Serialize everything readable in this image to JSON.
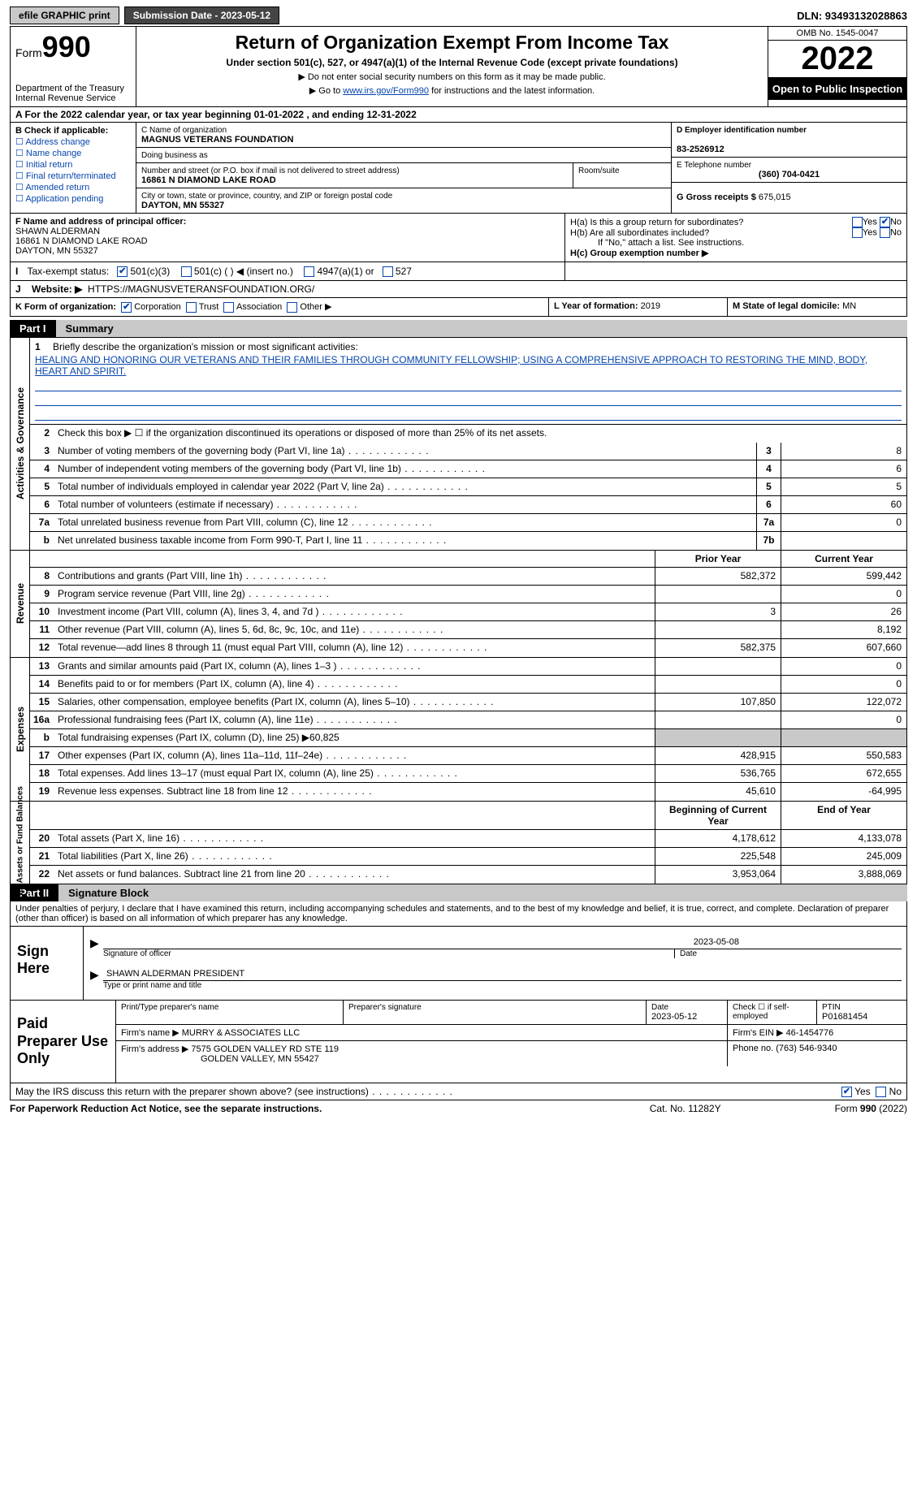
{
  "topbar": {
    "efile": "efile GRAPHIC print",
    "submission": "Submission Date - 2023-05-12",
    "dln": "DLN: 93493132028863"
  },
  "header": {
    "form_prefix": "Form",
    "form_no": "990",
    "dept": "Department of the Treasury",
    "irs": "Internal Revenue Service",
    "title": "Return of Organization Exempt From Income Tax",
    "subtitle": "Under section 501(c), 527, or 4947(a)(1) of the Internal Revenue Code (except private foundations)",
    "note1": "▶ Do not enter social security numbers on this form as it may be made public.",
    "note2_pre": "▶ Go to ",
    "note2_link": "www.irs.gov/Form990",
    "note2_post": " for instructions and the latest information.",
    "omb": "OMB No. 1545-0047",
    "year": "2022",
    "inspect": "Open to Public Inspection"
  },
  "row_a": "A   For the 2022 calendar year, or tax year beginning 01-01-2022     , and ending 12-31-2022",
  "b": {
    "label": "B Check if applicable:",
    "items": [
      "Address change",
      "Name change",
      "Initial return",
      "Final return/terminated",
      "Amended return",
      "Application pending"
    ]
  },
  "c": {
    "name_lbl": "C Name of organization",
    "name": "MAGNUS VETERANS FOUNDATION",
    "dba_lbl": "Doing business as",
    "dba": "",
    "street_lbl": "Number and street (or P.O. box if mail is not delivered to street address)",
    "street": "16861 N DIAMOND LAKE ROAD",
    "room_lbl": "Room/suite",
    "room": "",
    "city_lbl": "City or town, state or province, country, and ZIP or foreign postal code",
    "city": "DAYTON, MN  55327"
  },
  "d": {
    "lbl": "D Employer identification number",
    "val": "83-2526912"
  },
  "e": {
    "lbl": "E Telephone number",
    "val": "(360) 704-0421"
  },
  "g": {
    "lbl": "G Gross receipts $",
    "val": "675,015"
  },
  "f": {
    "lbl": "F  Name and address of principal officer:",
    "name": "SHAWN ALDERMAN",
    "addr1": "16861 N DIAMOND LAKE ROAD",
    "addr2": "DAYTON, MN  55327"
  },
  "h": {
    "a": "H(a)  Is this a group return for subordinates?",
    "b": "H(b)  Are all subordinates included?",
    "b_note": "If \"No,\" attach a list. See instructions.",
    "c": "H(c)  Group exemption number ▶"
  },
  "i": {
    "lbl": "Tax-exempt status:",
    "opts": [
      "501(c)(3)",
      "501(c) (    ) ◀ (insert no.)",
      "4947(a)(1) or",
      "527"
    ]
  },
  "j": {
    "lbl": "Website: ▶",
    "val": "HTTPS://MAGNUSVETERANSFOUNDATION.ORG/"
  },
  "k": {
    "lbl": "K Form of organization:",
    "opts": [
      "Corporation",
      "Trust",
      "Association",
      "Other ▶"
    ]
  },
  "l": {
    "lbl": "L Year of formation:",
    "val": "2019"
  },
  "m": {
    "lbl": "M State of legal domicile:",
    "val": "MN"
  },
  "part1": {
    "pt": "Part I",
    "name": "Summary"
  },
  "summary": {
    "q1": "Briefly describe the organization's mission or most significant activities:",
    "mission": "HEALING AND HONORING OUR VETERANS AND THEIR FAMILIES THROUGH COMMUNITY FELLOWSHIP; USING A COMPREHENSIVE APPROACH TO RESTORING THE MIND, BODY, HEART AND SPIRIT.",
    "q2": "Check this box ▶ ☐  if the organization discontinued its operations or disposed of more than 25% of its net assets.",
    "lines_simple": [
      {
        "n": "3",
        "t": "Number of voting members of the governing body (Part VI, line 1a)",
        "box": "3",
        "v": "8"
      },
      {
        "n": "4",
        "t": "Number of independent voting members of the governing body (Part VI, line 1b)",
        "box": "4",
        "v": "6"
      },
      {
        "n": "5",
        "t": "Total number of individuals employed in calendar year 2022 (Part V, line 2a)",
        "box": "5",
        "v": "5"
      },
      {
        "n": "6",
        "t": "Total number of volunteers (estimate if necessary)",
        "box": "6",
        "v": "60"
      },
      {
        "n": "7a",
        "t": "Total unrelated business revenue from Part VIII, column (C), line 12",
        "box": "7a",
        "v": "0"
      },
      {
        "n": "b",
        "t": "Net unrelated business taxable income from Form 990-T, Part I, line 11",
        "box": "7b",
        "v": ""
      }
    ],
    "col_hdr": {
      "prior": "Prior Year",
      "current": "Current Year"
    },
    "revenue": [
      {
        "n": "8",
        "t": "Contributions and grants (Part VIII, line 1h)",
        "p": "582,372",
        "c": "599,442"
      },
      {
        "n": "9",
        "t": "Program service revenue (Part VIII, line 2g)",
        "p": "",
        "c": "0"
      },
      {
        "n": "10",
        "t": "Investment income (Part VIII, column (A), lines 3, 4, and 7d )",
        "p": "3",
        "c": "26"
      },
      {
        "n": "11",
        "t": "Other revenue (Part VIII, column (A), lines 5, 6d, 8c, 9c, 10c, and 11e)",
        "p": "",
        "c": "8,192"
      },
      {
        "n": "12",
        "t": "Total revenue—add lines 8 through 11 (must equal Part VIII, column (A), line 12)",
        "p": "582,375",
        "c": "607,660"
      }
    ],
    "expenses": [
      {
        "n": "13",
        "t": "Grants and similar amounts paid (Part IX, column (A), lines 1–3 )",
        "p": "",
        "c": "0"
      },
      {
        "n": "14",
        "t": "Benefits paid to or for members (Part IX, column (A), line 4)",
        "p": "",
        "c": "0"
      },
      {
        "n": "15",
        "t": "Salaries, other compensation, employee benefits (Part IX, column (A), lines 5–10)",
        "p": "107,850",
        "c": "122,072"
      },
      {
        "n": "16a",
        "t": "Professional fundraising fees (Part IX, column (A), line 11e)",
        "p": "",
        "c": "0"
      },
      {
        "n": "b",
        "t": "Total fundraising expenses (Part IX, column (D), line 25) ▶60,825",
        "shade": true
      },
      {
        "n": "17",
        "t": "Other expenses (Part IX, column (A), lines 11a–11d, 11f–24e)",
        "p": "428,915",
        "c": "550,583"
      },
      {
        "n": "18",
        "t": "Total expenses. Add lines 13–17 (must equal Part IX, column (A), line 25)",
        "p": "536,765",
        "c": "672,655"
      },
      {
        "n": "19",
        "t": "Revenue less expenses. Subtract line 18 from line 12",
        "p": "45,610",
        "c": "-64,995"
      }
    ],
    "net_hdr": {
      "begin": "Beginning of Current Year",
      "end": "End of Year"
    },
    "net": [
      {
        "n": "20",
        "t": "Total assets (Part X, line 16)",
        "p": "4,178,612",
        "c": "4,133,078"
      },
      {
        "n": "21",
        "t": "Total liabilities (Part X, line 26)",
        "p": "225,548",
        "c": "245,009"
      },
      {
        "n": "22",
        "t": "Net assets or fund balances. Subtract line 21 from line 20",
        "p": "3,953,064",
        "c": "3,888,069"
      }
    ],
    "vlabels": {
      "ag": "Activities & Governance",
      "rev": "Revenue",
      "exp": "Expenses",
      "net": "Net Assets or Fund Balances"
    }
  },
  "part2": {
    "pt": "Part II",
    "name": "Signature Block"
  },
  "decl": "Under penalties of perjury, I declare that I have examined this return, including accompanying schedules and statements, and to the best of my knowledge and belief, it is true, correct, and complete. Declaration of preparer (other than officer) is based on all information of which preparer has any knowledge.",
  "sign": {
    "lbl": "Sign Here",
    "sig_cap": "Signature of officer",
    "date_cap": "Date",
    "date": "2023-05-08",
    "name": "SHAWN ALDERMAN  PRESIDENT",
    "name_cap": "Type or print name and title"
  },
  "prep": {
    "lbl": "Paid Preparer Use Only",
    "r1": {
      "c1_lbl": "Print/Type preparer's name",
      "c1": "",
      "c2_lbl": "Preparer's signature",
      "c2": "",
      "c3_lbl": "Date",
      "c3": "2023-05-12",
      "c4_lbl": "Check ☐ if self-employed",
      "c5_lbl": "PTIN",
      "c5": "P01681454"
    },
    "r2": {
      "lbl": "Firm's name      ▶",
      "val": "MURRY & ASSOCIATES LLC",
      "ein_lbl": "Firm's EIN ▶",
      "ein": "46-1454776"
    },
    "r3": {
      "lbl": "Firm's address ▶",
      "val1": "7575 GOLDEN VALLEY RD STE 119",
      "val2": "GOLDEN VALLEY, MN  55427",
      "ph_lbl": "Phone no.",
      "ph": "(763) 546-9340"
    }
  },
  "foot": "May the IRS discuss this return with the preparer shown above? (see instructions)",
  "lastline": {
    "pra": "For Paperwork Reduction Act Notice, see the separate instructions.",
    "cat": "Cat. No. 11282Y",
    "form": "Form 990 (2022)"
  },
  "yes": "Yes",
  "no": "No"
}
